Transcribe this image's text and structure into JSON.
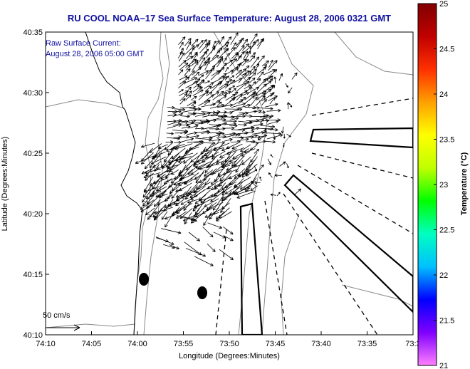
{
  "title": "RU COOL  NOAA–17  Sea Surface Temperature:  August 28, 2006 0321 GMT",
  "annotation": {
    "line1": "Raw Surface Current:",
    "line2": "August 28, 2006 05:00 GMT"
  },
  "scale_label": "50 cm/s",
  "x_axis": {
    "label": "Longitude (Degrees:Minutes)",
    "ticks": [
      "74:10",
      "74:05",
      "74:00",
      "73:55",
      "73:50",
      "73:45",
      "73:40",
      "73:35",
      "73:3"
    ]
  },
  "y_axis": {
    "label": "Latitude (Degrees:Minutes)",
    "ticks": [
      "40:35",
      "40:30",
      "40:25",
      "40:20",
      "40:15",
      "40:10"
    ]
  },
  "colorbar": {
    "label": "Temperature (°C)",
    "ticks": [
      "25",
      "24.5",
      "24",
      "23.5",
      "23",
      "22.5",
      "22",
      "21.5",
      "21"
    ],
    "colors": [
      "#ff80ff",
      "#8000ff",
      "#0000ff",
      "#00c0ff",
      "#00ffc0",
      "#00ff00",
      "#c0ff00",
      "#ffff00",
      "#ffa000",
      "#ff3000",
      "#c00000",
      "#800000"
    ]
  },
  "colors": {
    "title": "#1010a0",
    "contour": "#888888",
    "arrows": "#000000"
  }
}
